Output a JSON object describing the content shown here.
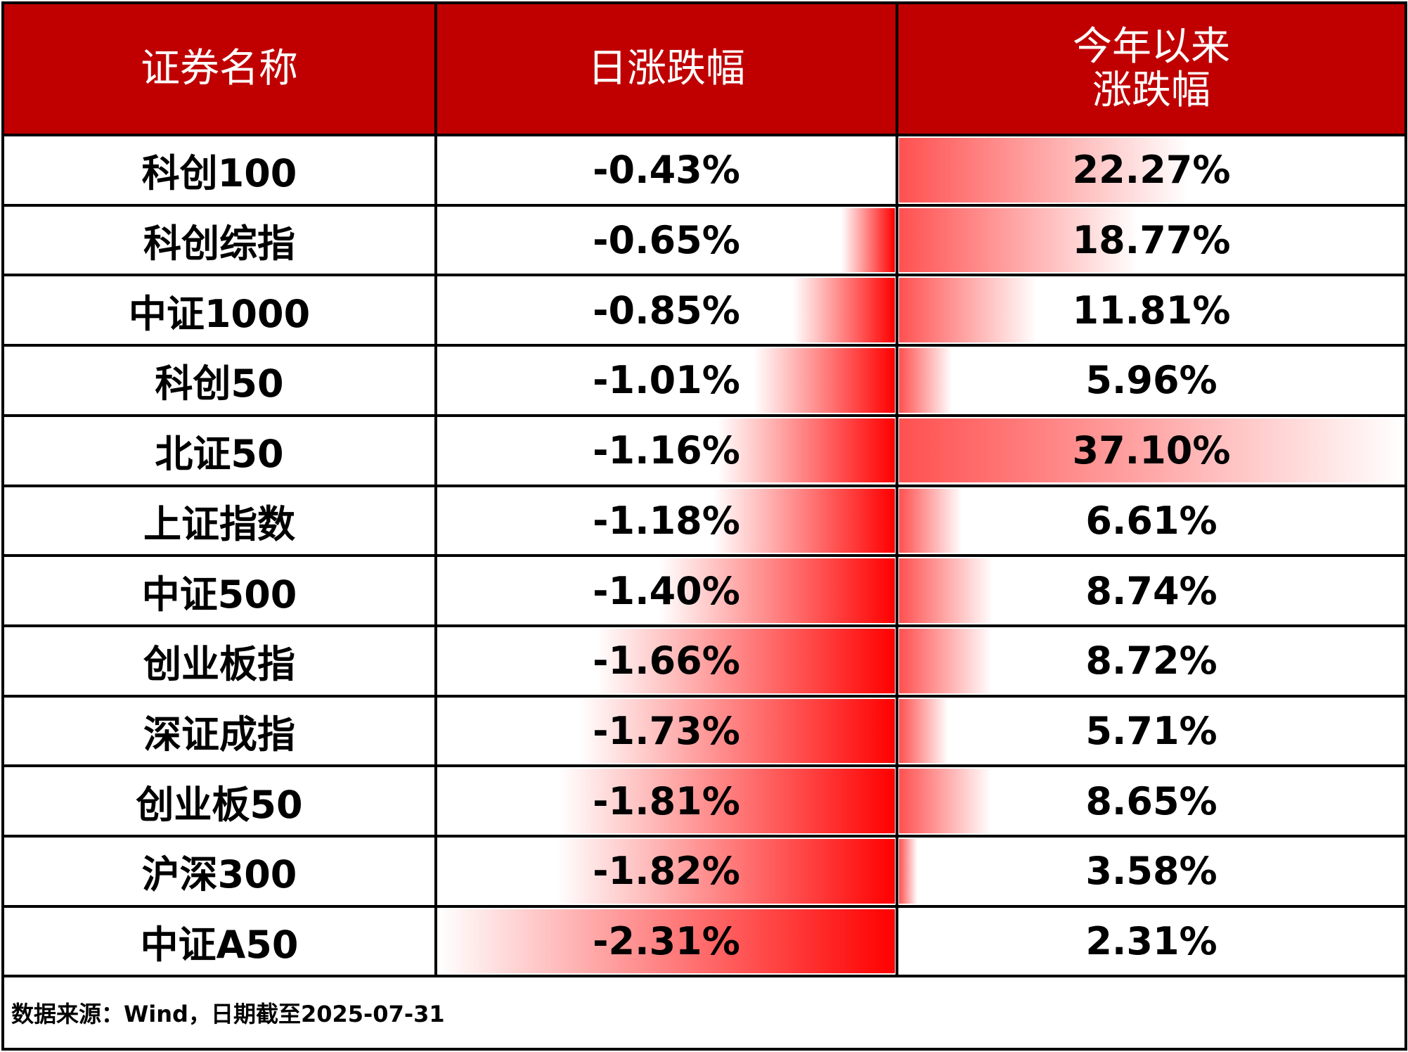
{
  "table": {
    "headers": [
      "证券名称",
      "日涨跌幅",
      "今年以来\n涨跌幅"
    ],
    "names": [
      "科创100",
      "科创综指",
      "中证1000",
      "科创50",
      "北证50",
      "上证指数",
      "中证500",
      "创业板指",
      "深证成指",
      "创业板50",
      "沪深300",
      "中证A50"
    ],
    "daily": {
      "values": [
        -0.43,
        -0.65,
        -0.85,
        -1.01,
        -1.16,
        -1.18,
        -1.4,
        -1.66,
        -1.73,
        -1.81,
        -1.82,
        -2.31
      ],
      "value_labels": [
        "-0.43%",
        "-0.65%",
        "-0.85%",
        "-1.01%",
        "-1.16%",
        "-1.18%",
        "-1.40%",
        "-1.66%",
        "-1.73%",
        "-1.81%",
        "-1.82%",
        "-2.31%"
      ],
      "color": "#ff0000"
    },
    "ytd": {
      "values": [
        22.27,
        18.77,
        11.81,
        5.96,
        37.1,
        6.61,
        8.74,
        8.72,
        5.71,
        8.65,
        3.58,
        2.31
      ],
      "value_labels": [
        "22.27%",
        "18.77%",
        "11.81%",
        "5.96%",
        "37.10%",
        "6.61%",
        "8.74%",
        "8.72%",
        "5.71%",
        "8.65%",
        "3.58%",
        "2.31%"
      ],
      "color": "#ff5050"
    },
    "header_color": "#c00000",
    "footer": "数据来源：Wind，日期截至2025-07-31"
  }
}
